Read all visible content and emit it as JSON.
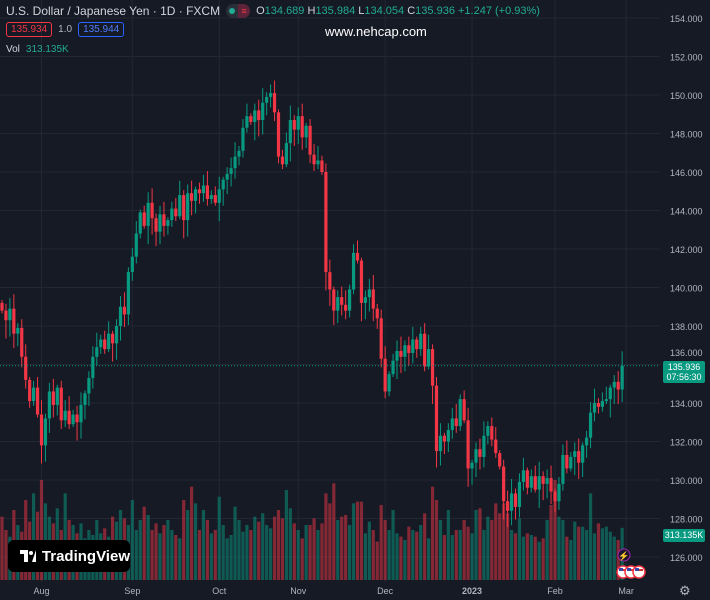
{
  "header": {
    "symbol": "U.S. Dollar / Japanese Yen · 1D · FXCM",
    "o_label": "O",
    "o": "134.689",
    "h_label": "H",
    "h": "135.984",
    "l_label": "L",
    "l": "134.054",
    "c_label": "C",
    "c": "135.936",
    "change": "+1.247 (+0.93%)",
    "sell": "135.934",
    "spread": "1.0",
    "buy": "135.944",
    "vol_label": "Vol",
    "vol_value": "313.135K"
  },
  "watermark": "www.nehcap.com",
  "logo": "TradingView",
  "price_label": {
    "price": "135.936",
    "countdown": "07:56:30"
  },
  "volume_label": "313.135K",
  "colors": {
    "up": "#089981",
    "down": "#f23645",
    "bg": "#161a25"
  },
  "chart_data": {
    "type": "candlestick",
    "title": "U.S. Dollar / Japanese Yen · 1D · FXCM",
    "ylim": [
      125,
      155
    ],
    "y_ticks": [
      "154.000",
      "152.000",
      "150.000",
      "148.000",
      "146.000",
      "144.000",
      "142.000",
      "140.000",
      "138.000",
      "136.000",
      "134.000",
      "132.000",
      "130.000",
      "128.000",
      "126.000"
    ],
    "x_ticks": [
      {
        "label": "Aug",
        "index": 10
      },
      {
        "label": "Sep",
        "index": 33
      },
      {
        "label": "Oct",
        "index": 55
      },
      {
        "label": "Nov",
        "index": 75
      },
      {
        "label": "Dec",
        "index": 97
      },
      {
        "label": "2023",
        "index": 119
      },
      {
        "label": "Feb",
        "index": 140
      },
      {
        "label": "Mar",
        "index": 158
      }
    ],
    "first_open": 139.2,
    "closes": [
      138.8,
      138.3,
      138.9,
      137.6,
      137.9,
      136.4,
      135.2,
      134.1,
      134.8,
      133.4,
      131.8,
      133.2,
      134.6,
      133.9,
      134.8,
      133.1,
      133.6,
      132.9,
      133.4,
      133.0,
      133.9,
      134.5,
      135.3,
      136.4,
      136.9,
      137.3,
      136.8,
      137.6,
      137.1,
      138.0,
      139.0,
      138.6,
      140.8,
      141.6,
      142.8,
      143.9,
      143.2,
      144.4,
      143.6,
      142.9,
      143.8,
      143.2,
      143.5,
      144.1,
      143.7,
      144.8,
      143.5,
      144.9,
      144.5,
      145.1,
      144.9,
      145.3,
      144.6,
      144.8,
      144.4,
      145.1,
      145.6,
      145.9,
      146.2,
      146.8,
      147.1,
      148.3,
      148.9,
      148.6,
      149.2,
      148.7,
      149.6,
      149.9,
      150.1,
      149.1,
      146.8,
      146.4,
      147.5,
      148.7,
      148.2,
      148.9,
      147.8,
      148.4,
      146.9,
      146.4,
      146.6,
      146.0,
      140.8,
      139.9,
      138.8,
      139.5,
      139.1,
      138.8,
      139.9,
      141.8,
      141.4,
      139.2,
      139.5,
      139.9,
      138.9,
      138.4,
      136.3,
      134.6,
      135.5,
      136.2,
      136.7,
      136.4,
      137.0,
      136.6,
      137.3,
      136.8,
      137.6,
      135.9,
      136.8,
      134.9,
      131.5,
      132.3,
      132.0,
      132.6,
      133.2,
      132.8,
      134.2,
      133.1,
      130.6,
      130.9,
      131.6,
      131.2,
      132.3,
      132.8,
      132.1,
      131.4,
      130.7,
      128.9,
      128.4,
      129.3,
      128.6,
      129.9,
      130.5,
      129.6,
      130.2,
      129.5,
      130.2,
      129.8,
      130.1,
      129.4,
      128.9,
      129.8,
      131.3,
      130.6,
      131.2,
      131.5,
      130.9,
      131.8,
      132.2,
      133.5,
      134.0,
      133.8,
      134.1,
      134.2,
      134.8,
      135.1,
      134.7,
      135.936
    ],
    "volumes_k": [
      380,
      300,
      260,
      420,
      330,
      290,
      480,
      350,
      520,
      410,
      600,
      460,
      380,
      340,
      430,
      300,
      520,
      360,
      330,
      280,
      340,
      250,
      300,
      270,
      360,
      280,
      310,
      260,
      380,
      350,
      420,
      370,
      330,
      480,
      300,
      360,
      440,
      390,
      300,
      340,
      280,
      330,
      360,
      300,
      270,
      250,
      480,
      420,
      560,
      460,
      300,
      420,
      360,
      280,
      300,
      500,
      330,
      250,
      270,
      440,
      360,
      290,
      330,
      300,
      380,
      350,
      400,
      330,
      310,
      380,
      420,
      370,
      540,
      430,
      340,
      300,
      250,
      330,
      330,
      370,
      300,
      340,
      520,
      460,
      580,
      360,
      380,
      390,
      330,
      460,
      470,
      470,
      280,
      350,
      300,
      230,
      450,
      360,
      300,
      420,
      280,
      260,
      240,
      320,
      300,
      290,
      330,
      400,
      250,
      560,
      480,
      360,
      270,
      420,
      270,
      300,
      300,
      360,
      320,
      280,
      420,
      430,
      300,
      380,
      360,
      460,
      400,
      460,
      400,
      300,
      280,
      370,
      260,
      280,
      270,
      260,
      230,
      250,
      360,
      450,
      600,
      380,
      360,
      260,
      240,
      350,
      320,
      320,
      300,
      520,
      280,
      340,
      310,
      320,
      290,
      260,
      240,
      313
    ]
  }
}
